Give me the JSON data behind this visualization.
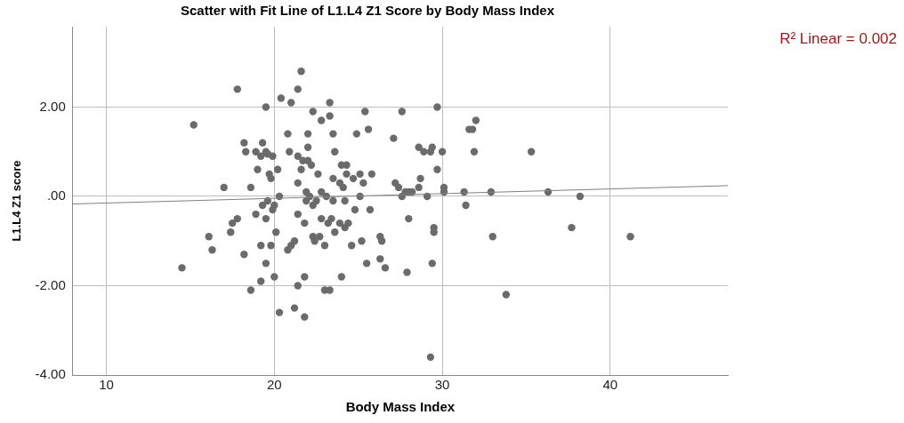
{
  "chart_data": {
    "type": "scatter",
    "title": "Scatter with Fit Line of L1.L4 Z1 Score by Body Mass Index",
    "xlabel": "Body Mass Index",
    "ylabel": "L1.L4 Z1 score",
    "annotations": [
      "R² Linear = 0.002"
    ],
    "xlim": [
      8,
      47
    ],
    "xticks": [
      10,
      20,
      30,
      40
    ],
    "ylim": [
      -4,
      3.8
    ],
    "yticks": [
      {
        "value": -4,
        "label": "-4.00"
      },
      {
        "value": -2,
        "label": "-2.00"
      },
      {
        "value": 0,
        "label": ".00"
      },
      {
        "value": 2,
        "label": "2.00"
      }
    ],
    "grid": true,
    "legend": false,
    "marker": "circle",
    "series": [
      {
        "color": "#6b6b6b",
        "x": [
          14.5,
          15.2,
          16.1,
          16.3,
          17.0,
          17.5,
          17.8,
          17.8,
          17.4,
          18.2,
          18.3,
          18.2,
          18.6,
          18.6,
          18.9,
          18.9,
          19.0,
          19.3,
          19.2,
          19.5,
          19.5,
          19.2,
          19.5,
          19.3,
          19.5,
          19.6,
          19.7,
          19.8,
          19.8,
          19.9,
          19.6,
          19.2,
          19.9,
          20.1,
          20.0,
          20.2,
          20.3,
          20.0,
          20.3,
          20.4,
          20.8,
          20.9,
          21.0,
          20.8,
          21.0,
          21.2,
          21.2,
          21.4,
          21.6,
          21.4,
          21.4,
          21.4,
          21.4,
          21.6,
          21.7,
          21.8,
          21.8,
          21.8,
          21.9,
          21.9,
          22.0,
          22.0,
          22.0,
          22.1,
          22.2,
          22.3,
          22.3,
          22.3,
          22.4,
          22.5,
          22.6,
          22.7,
          22.8,
          22.8,
          22.8,
          23.0,
          23.0,
          23.1,
          23.2,
          23.3,
          23.3,
          23.3,
          23.4,
          23.5,
          23.6,
          23.5,
          23.5,
          23.6,
          23.9,
          23.9,
          24.0,
          24.0,
          24.1,
          24.2,
          24.2,
          24.3,
          24.3,
          24.4,
          24.6,
          24.7,
          24.8,
          24.9,
          25.1,
          25.2,
          25.1,
          25.3,
          25.4,
          25.5,
          25.6,
          25.7,
          25.8,
          26.3,
          26.3,
          26.4,
          26.6,
          27.1,
          27.2,
          27.4,
          27.6,
          27.6,
          27.8,
          27.9,
          28.0,
          28.0,
          28.2,
          28.6,
          28.7,
          28.6,
          28.9,
          29.1,
          29.3,
          29.3,
          29.4,
          29.4,
          29.5,
          29.5,
          29.7,
          29.7,
          30.0,
          30.1,
          30.1,
          31.3,
          31.4,
          31.6,
          31.8,
          31.9,
          32.0,
          32.9,
          33.0,
          33.8,
          35.3,
          36.3,
          37.7,
          38.2,
          41.2
        ],
        "values": [
          -1.6,
          1.6,
          -0.9,
          -1.2,
          0.2,
          -0.6,
          2.4,
          -0.5,
          -0.8,
          1.2,
          1.0,
          -1.3,
          -2.1,
          0.2,
          -0.4,
          1.0,
          0.6,
          1.2,
          0.9,
          1.0,
          2.0,
          -1.1,
          -1.5,
          -0.2,
          -0.5,
          -0.1,
          0.5,
          0.4,
          -1.1,
          0.9,
          0.95,
          -1.9,
          -0.3,
          -0.8,
          -1.8,
          0.6,
          0.0,
          -0.2,
          -2.6,
          2.2,
          1.4,
          1.0,
          2.1,
          -1.2,
          -1.1,
          -1.0,
          -2.5,
          2.4,
          2.8,
          0.9,
          0.3,
          -0.4,
          -2.0,
          0.6,
          0.8,
          -0.6,
          -1.8,
          -2.7,
          0.1,
          -0.1,
          1.4,
          1.1,
          0.8,
          0.0,
          0.7,
          1.9,
          -0.2,
          -0.9,
          -1.0,
          -0.1,
          0.5,
          -0.9,
          1.7,
          -0.5,
          0.1,
          -1.1,
          -2.1,
          0.0,
          -0.6,
          2.1,
          1.8,
          -2.1,
          -0.5,
          1.4,
          1.0,
          0.4,
          -0.1,
          -0.8,
          0.3,
          -0.6,
          0.7,
          -1.8,
          0.2,
          -0.1,
          -0.7,
          0.5,
          0.7,
          -0.6,
          -1.1,
          0.4,
          -0.3,
          1.4,
          0.5,
          -1.0,
          0.0,
          0.3,
          1.9,
          -1.5,
          1.5,
          -0.3,
          0.5,
          -0.9,
          -1.4,
          -1.0,
          -1.6,
          1.3,
          0.3,
          0.2,
          0.0,
          1.9,
          0.1,
          -1.7,
          0.1,
          -0.5,
          0.1,
          1.1,
          0.4,
          0.2,
          1.0,
          0.0,
          -3.6,
          1.0,
          1.1,
          -1.5,
          -0.7,
          -0.8,
          0.6,
          2.0,
          1.0,
          0.2,
          0.1,
          0.1,
          -0.2,
          1.5,
          1.5,
          1.0,
          1.7,
          0.1,
          -0.9,
          -2.2,
          1.0,
          0.1,
          -0.7,
          0.0,
          -0.9
        ]
      },
      {
        "type": "line",
        "marker": "none",
        "color": "#808080",
        "x": [
          8,
          47
        ],
        "values": [
          -0.17,
          0.24
        ]
      }
    ]
  }
}
